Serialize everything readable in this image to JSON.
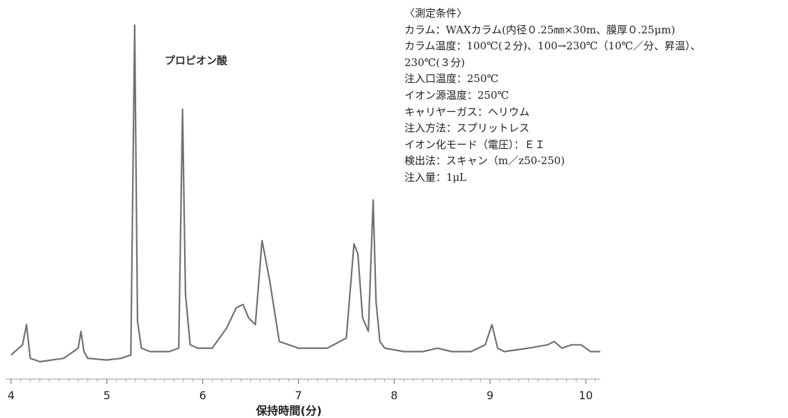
{
  "chart_data": {
    "type": "line",
    "title": "",
    "xlabel": "保持時間(分)",
    "ylabel": "",
    "xlim": [
      4,
      10.15
    ],
    "x_ticks": [
      4,
      5,
      6,
      7,
      8,
      9,
      10
    ],
    "minor_tick_step": 0.1,
    "line_color": "#707070",
    "annotation": {
      "text": "プロピオン酸",
      "x": 5.85
    },
    "baseline": 0.03,
    "ylim": [
      0,
      1
    ],
    "series": [
      {
        "x": [
          4.0,
          4.12,
          4.16,
          4.2,
          4.3,
          4.55,
          4.7,
          4.73,
          4.76,
          4.8,
          5.0,
          5.15,
          5.25,
          5.29,
          5.32,
          5.36,
          5.45,
          5.55,
          5.65,
          5.75,
          5.79,
          5.82,
          5.87,
          5.95,
          6.1,
          6.25,
          6.35,
          6.42,
          6.48,
          6.55,
          6.62,
          6.7,
          6.8,
          7.0,
          7.3,
          7.5,
          7.58,
          7.62,
          7.67,
          7.73,
          7.78,
          7.81,
          7.85,
          7.9,
          8.1,
          8.3,
          8.45,
          8.6,
          8.8,
          8.95,
          9.02,
          9.08,
          9.15,
          9.4,
          9.6,
          9.67,
          9.75,
          9.85,
          9.95,
          10.05,
          10.15
        ],
        "y": [
          0.02,
          0.05,
          0.11,
          0.01,
          0.0,
          0.01,
          0.04,
          0.09,
          0.03,
          0.01,
          0.005,
          0.01,
          0.02,
          1.0,
          0.12,
          0.04,
          0.03,
          0.03,
          0.03,
          0.04,
          0.75,
          0.2,
          0.05,
          0.04,
          0.04,
          0.1,
          0.16,
          0.17,
          0.13,
          0.11,
          0.36,
          0.24,
          0.06,
          0.04,
          0.04,
          0.07,
          0.35,
          0.32,
          0.13,
          0.09,
          0.48,
          0.18,
          0.06,
          0.04,
          0.03,
          0.03,
          0.04,
          0.03,
          0.03,
          0.05,
          0.11,
          0.04,
          0.03,
          0.04,
          0.05,
          0.06,
          0.04,
          0.05,
          0.05,
          0.03,
          0.03
        ]
      }
    ]
  },
  "conditions": {
    "title": "〈測定条件〉",
    "lines": [
      "カラム：WAXカラム(内径０.25㎜×30m、膜厚０.25μm)",
      "カラム温度：100℃(２分)、100→230℃（10℃／分、昇温）、",
      "230℃(３分)",
      "注入口温度：250℃",
      "イオン源温度：250℃",
      "キャリヤーガス：ヘリウム",
      "注入方法：スプリットレス",
      "イオン化モード（電圧）：ＥＩ",
      "検出法：スキャン（m／z50-250)",
      "注入量：1μL"
    ]
  }
}
